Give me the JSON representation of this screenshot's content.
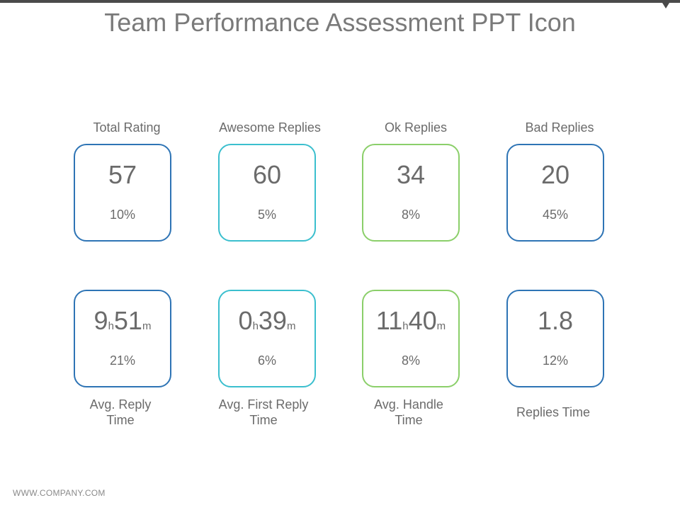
{
  "slide": {
    "title": "Team Performance Assessment PPT Icon",
    "footer": "WWW.COMPANY.COM"
  },
  "top_row": [
    {
      "label": "Total Rating",
      "value": "57",
      "percent": "10%"
    },
    {
      "label": "Awesome Replies",
      "value": "60",
      "percent": "5%"
    },
    {
      "label": "Ok Replies",
      "value": "34",
      "percent": "8%"
    },
    {
      "label": "Bad Replies",
      "value": "20",
      "percent": "45%"
    }
  ],
  "bottom_row": [
    {
      "label_line1": "Avg. Reply",
      "label_line2": "Time",
      "hours": "9",
      "hours_unit": "h",
      "minutes": "51",
      "minutes_unit": "m",
      "percent": "21%"
    },
    {
      "label_line1": "Avg. First Reply",
      "label_line2": "Time",
      "hours": "0",
      "hours_unit": "h",
      "minutes": "39",
      "minutes_unit": "m",
      "percent": "6%"
    },
    {
      "label_line1": "Avg. Handle",
      "label_line2": "Time",
      "hours": "11",
      "hours_unit": "h",
      "minutes": "40",
      "minutes_unit": "m",
      "percent": "8%"
    },
    {
      "label": "Replies Time",
      "value": "1.8",
      "percent": "12%"
    }
  ],
  "colors": {
    "navy": "#2e74b5",
    "teal": "#3bbfce",
    "green": "#8bcf6a",
    "text": "#6b6b6b",
    "top_bar": "#4a4a4a"
  }
}
